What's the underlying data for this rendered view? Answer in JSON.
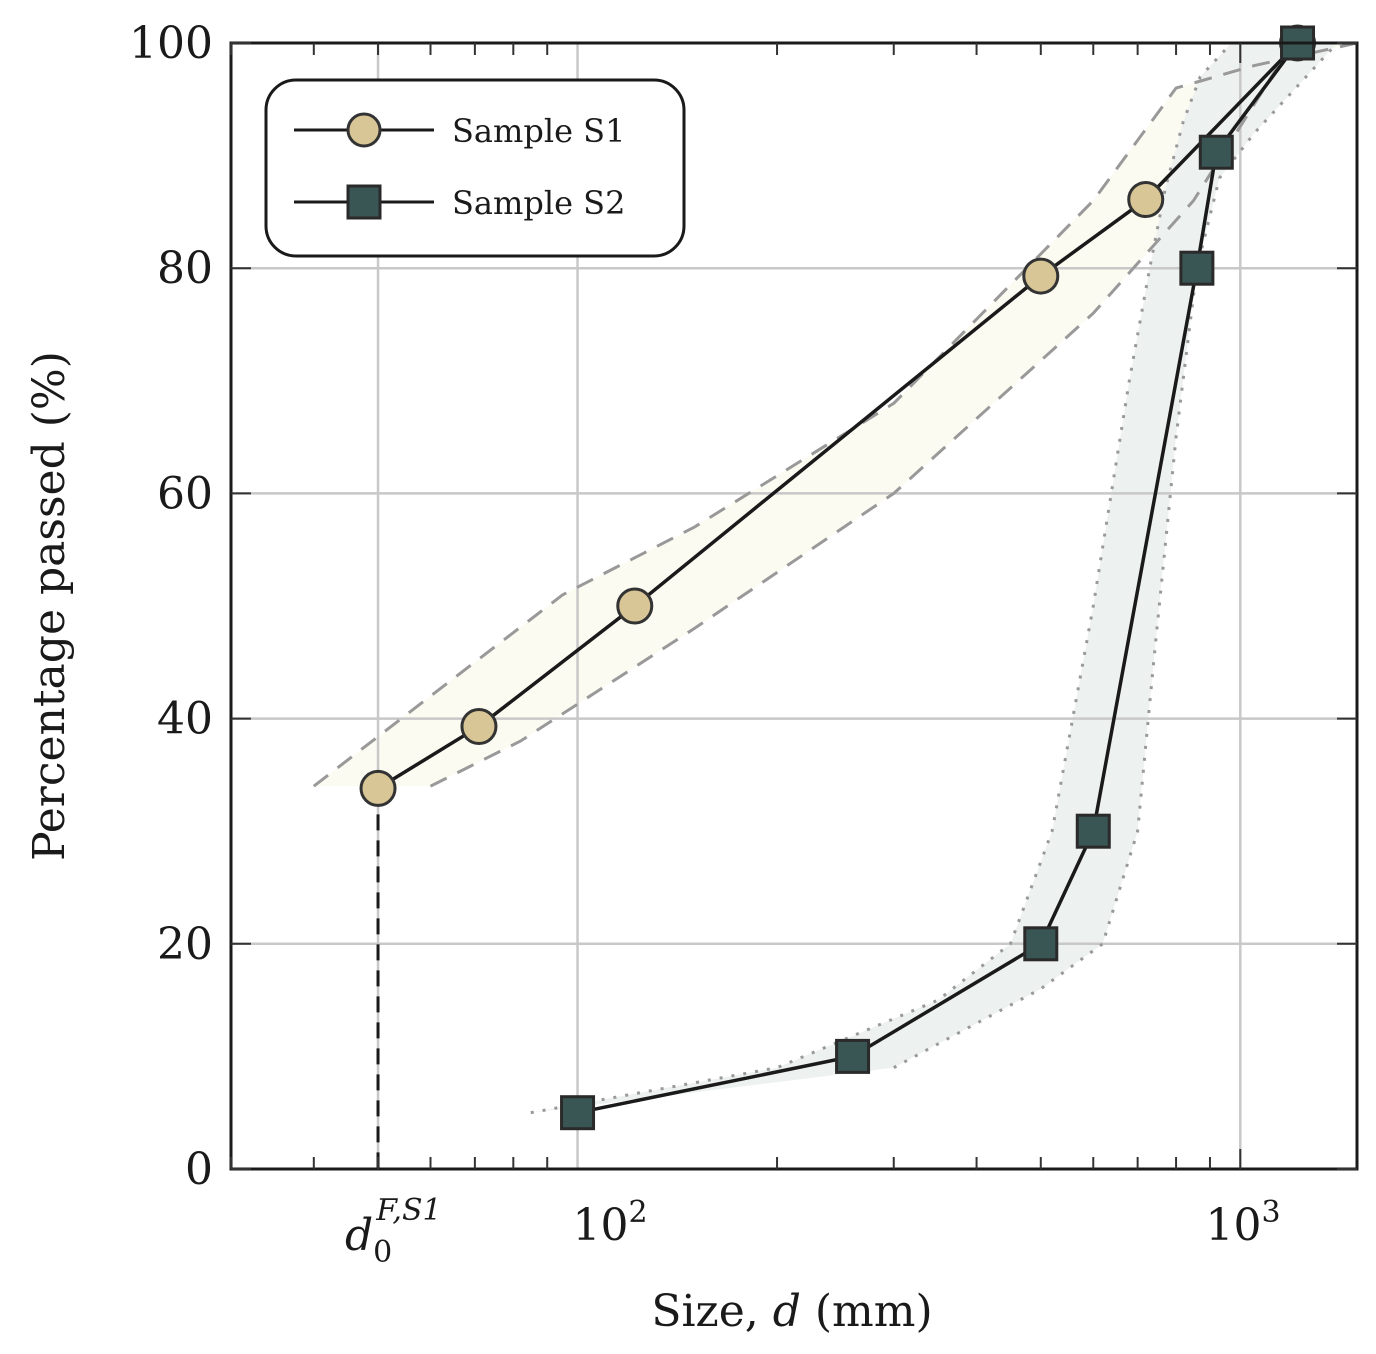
{
  "colors": {
    "s1_fill": "#D9C697",
    "s2_fill": "#3A5654",
    "line": "#1a1a1a",
    "band_s1": "#FCFBF2",
    "band_s2": "#EDF1EF",
    "grid": "#c8c8c8",
    "bound": "#999999"
  },
  "chart_data": {
    "type": "line",
    "xscale": "log",
    "xlim": [
      30,
      1500
    ],
    "ylim": [
      0,
      100
    ],
    "xlabel_prefix": "Size, ",
    "xlabel_var": "d",
    "xlabel_suffix": " (mm)",
    "ylabel": "Percentage passed (%)",
    "x_ticks": [
      {
        "value": 100,
        "base": "10",
        "exp": "2"
      },
      {
        "value": 1000,
        "base": "10",
        "exp": "3"
      }
    ],
    "x_marker": {
      "value": 50,
      "symbol": "d",
      "sub": "0",
      "sup": "F,S1",
      "percent": 33.8
    },
    "y_ticks": [
      "0",
      "20",
      "40",
      "60",
      "80",
      "100"
    ],
    "grid": true,
    "legend_position": "top-left",
    "series": [
      {
        "name": "Sample S1",
        "marker": "circle",
        "x": [
          50,
          71,
          122,
          500,
          720,
          1220
        ],
        "y": [
          33.8,
          39.3,
          50,
          79.3,
          86.1,
          100
        ],
        "band_upper": {
          "x": [
            40,
            60,
            95,
            150,
            300,
            600,
            800,
            1050,
            1500
          ],
          "y": [
            34,
            42,
            51,
            57,
            68,
            86,
            96,
            98,
            100
          ]
        },
        "band_lower": {
          "x": [
            60,
            82,
            150,
            300,
            600,
            850,
            1200
          ],
          "y": [
            34,
            38,
            48,
            60,
            76,
            86,
            100
          ]
        }
      },
      {
        "name": "Sample S2",
        "marker": "square",
        "x": [
          100,
          260,
          500,
          600,
          860,
          920,
          1220
        ],
        "y": [
          5,
          10,
          20,
          30,
          80,
          90.3,
          100
        ],
        "band_upper": {
          "x": [
            85,
            200,
            350,
            450,
            520,
            600,
            680,
            730,
            770,
            820,
            870,
            970,
            1100
          ],
          "y": [
            5,
            9,
            15,
            20,
            30,
            50,
            70,
            80,
            87,
            93,
            97,
            100,
            100
          ]
        },
        "band_lower": {
          "x": [
            300,
            500,
            620,
            700,
            740,
            800,
            860,
            930,
            1050,
            1400
          ],
          "y": [
            9,
            16,
            20,
            30,
            45,
            65,
            80,
            88,
            92,
            100
          ]
        }
      }
    ]
  }
}
